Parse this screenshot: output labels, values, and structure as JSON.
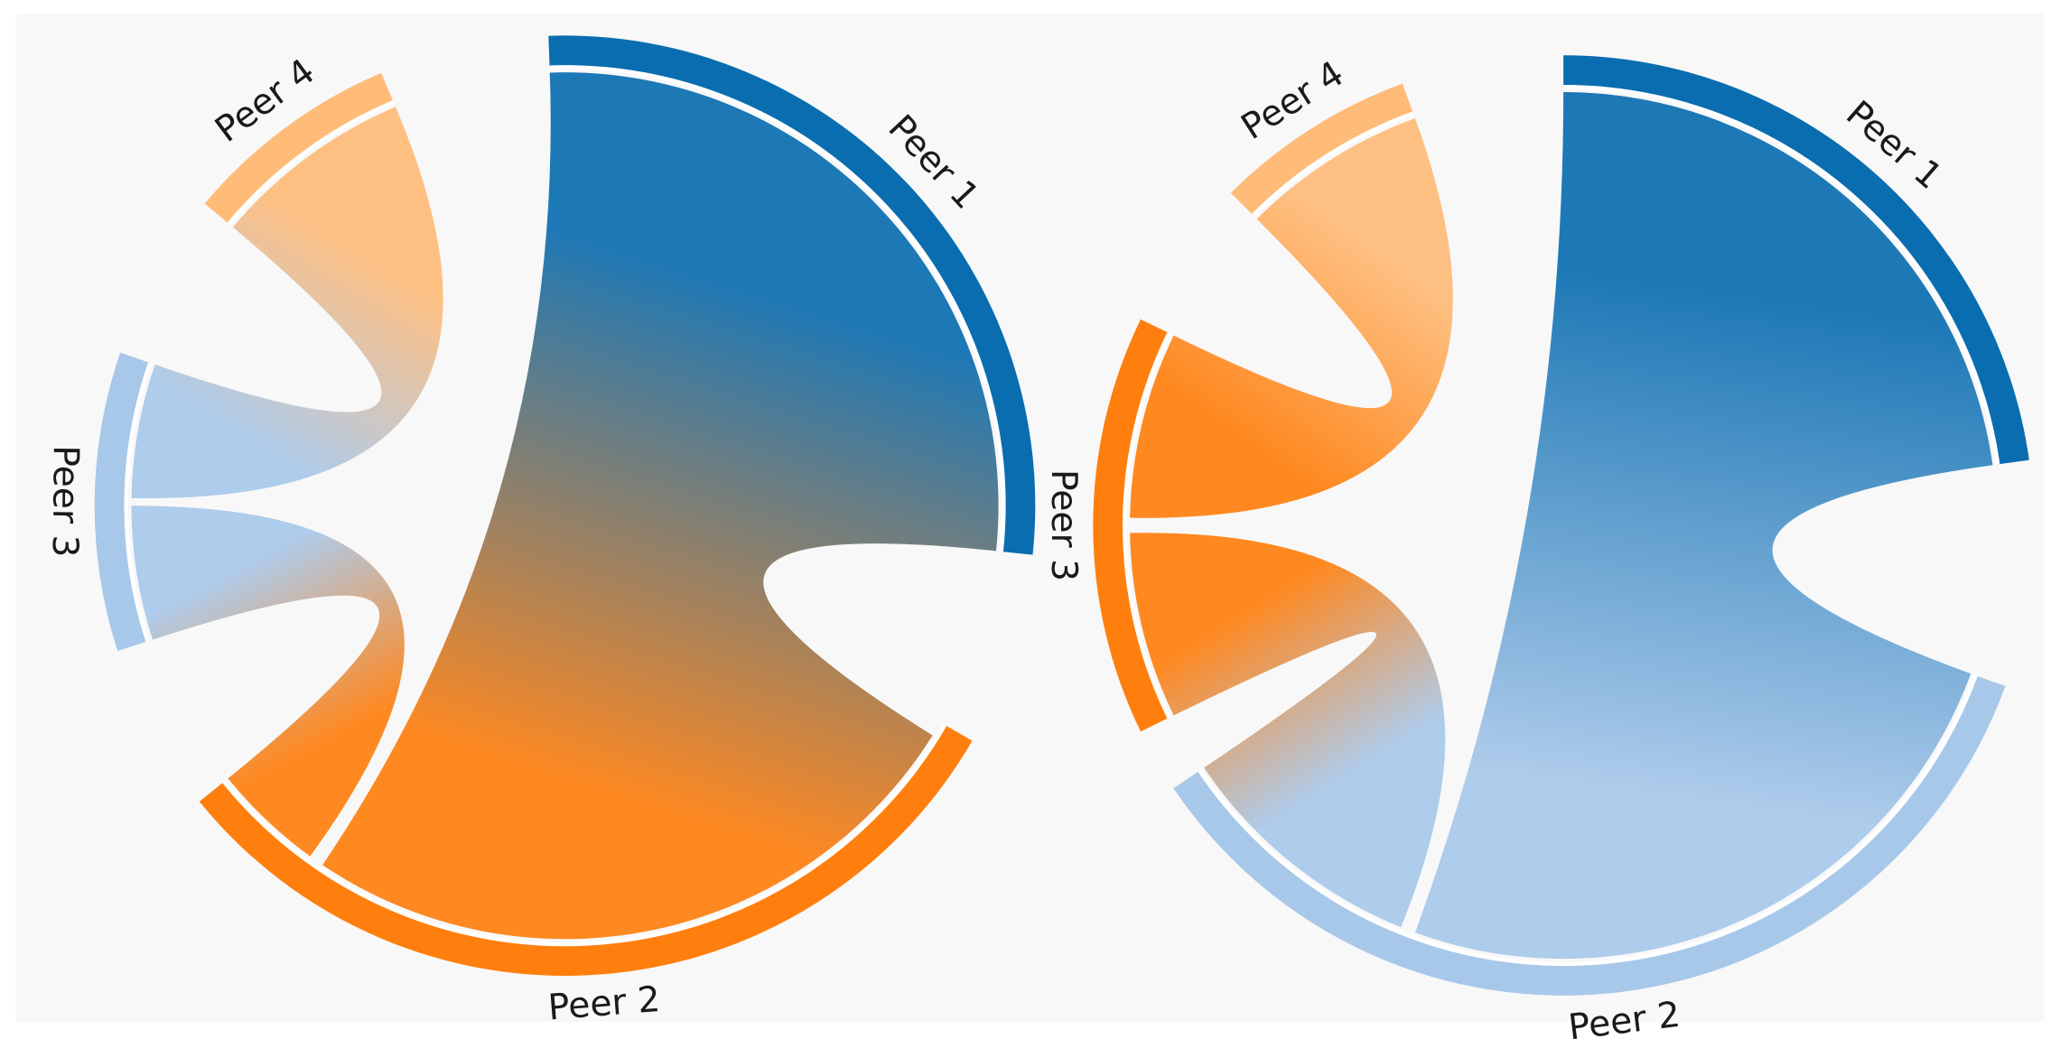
{
  "diagrams": [
    {
      "nodes": [
        {
          "label": "Peer 1"
        },
        {
          "label": "Peer 2"
        },
        {
          "label": "Peer 3"
        },
        {
          "label": "Peer 4"
        }
      ]
    },
    {
      "nodes": [
        {
          "label": "Peer 1"
        },
        {
          "label": "Peer 2"
        },
        {
          "label": "Peer 3"
        },
        {
          "label": "Peer 4"
        }
      ]
    }
  ]
}
